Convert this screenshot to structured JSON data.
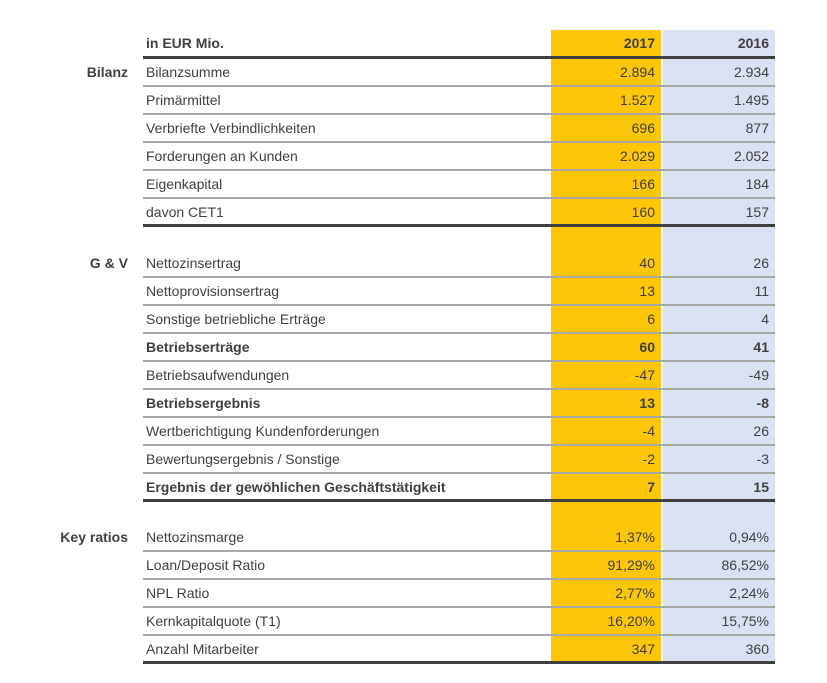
{
  "report": {
    "unit_label": "in EUR Mio.",
    "columns": [
      "2017",
      "2016"
    ],
    "sections": [
      {
        "name": "Bilanz",
        "rows": [
          {
            "label": "Bilanzsumme",
            "v2017": "2.894",
            "v2016": "2.934",
            "bold": false
          },
          {
            "label": "Primärmittel",
            "v2017": "1.527",
            "v2016": "1.495",
            "bold": false
          },
          {
            "label": "Verbriefte Verbindlichkeiten",
            "v2017": "696",
            "v2016": "877",
            "bold": false
          },
          {
            "label": "Forderungen an Kunden",
            "v2017": "2.029",
            "v2016": "2.052",
            "bold": false
          },
          {
            "label": "Eigenkapital",
            "v2017": "166",
            "v2016": "184",
            "bold": false
          },
          {
            "label": "davon CET1",
            "v2017": "160",
            "v2016": "157",
            "bold": false
          }
        ]
      },
      {
        "name": "G & V",
        "rows": [
          {
            "label": "Nettozinsertrag",
            "v2017": "40",
            "v2016": "26",
            "bold": false
          },
          {
            "label": "Nettoprovisionsertrag",
            "v2017": "13",
            "v2016": "11",
            "bold": false
          },
          {
            "label": "Sonstige betriebliche Erträge",
            "v2017": "6",
            "v2016": "4",
            "bold": false
          },
          {
            "label": "Betriebserträge",
            "v2017": "60",
            "v2016": "41",
            "bold": true
          },
          {
            "label": "Betriebsaufwendungen",
            "v2017": "-47",
            "v2016": "-49",
            "bold": false
          },
          {
            "label": "Betriebsergebnis",
            "v2017": "13",
            "v2016": "-8",
            "bold": true
          },
          {
            "label": "Wertberichtigung Kundenforderungen",
            "v2017": "-4",
            "v2016": "26",
            "bold": false
          },
          {
            "label": "Bewertungsergebnis / Sonstige",
            "v2017": "-2",
            "v2016": "-3",
            "bold": false
          },
          {
            "label": "Ergebnis der gewöhlichen Geschäftstätigkeit",
            "v2017": "7",
            "v2016": "15",
            "bold": true
          }
        ]
      },
      {
        "name": "Key ratios",
        "rows": [
          {
            "label": "Nettozinsmarge",
            "v2017": "1,37%",
            "v2016": "0,94%",
            "bold": false
          },
          {
            "label": "Loan/Deposit Ratio",
            "v2017": "91,29%",
            "v2016": "86,52%",
            "bold": false
          },
          {
            "label": "NPL Ratio",
            "v2017": "2,77%",
            "v2016": "2,24%",
            "bold": false
          },
          {
            "label": "Kernkapitalquote (T1)",
            "v2017": "16,20%",
            "v2016": "15,75%",
            "bold": false
          },
          {
            "label": "Anzahl Mitarbeiter",
            "v2017": "347",
            "v2016": "360",
            "bold": false
          }
        ]
      }
    ],
    "colors": {
      "col_2017_bg": "#FDC609",
      "col_2016_bg": "#D9E1F2",
      "text": "#404040",
      "thin_rule": "#A6A6A6",
      "thick_rule": "#404040"
    }
  }
}
